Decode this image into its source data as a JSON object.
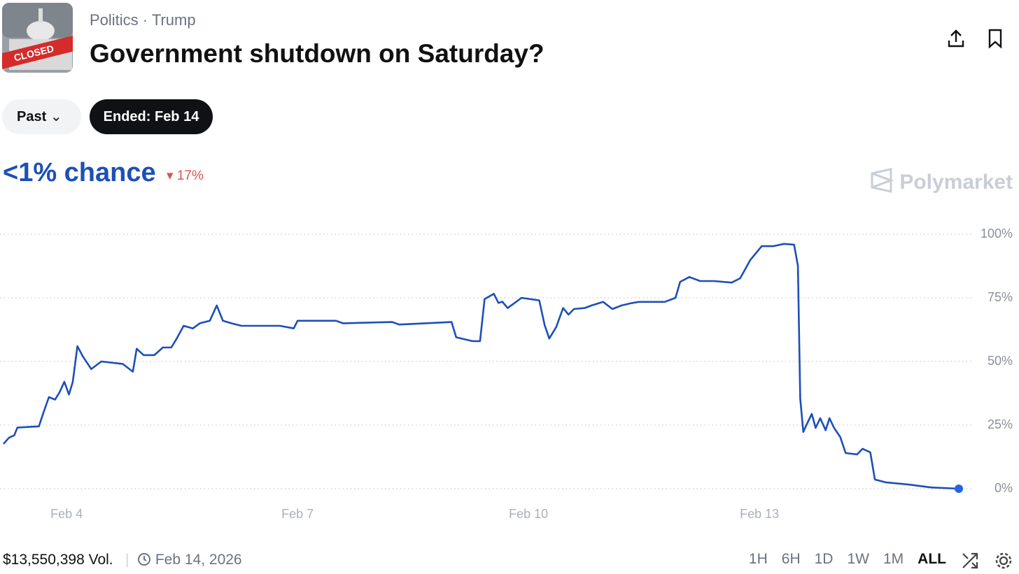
{
  "header": {
    "category": "Politics",
    "tag": "Trump",
    "title": "Government shutdown on Saturday?",
    "thumbnail_text": "CLOSED"
  },
  "filters": {
    "period": "Past",
    "status": "Ended: Feb 14"
  },
  "summary": {
    "chance": "<1% chance",
    "change": "17%",
    "brand": "Polymarket"
  },
  "chart_data": {
    "type": "line",
    "color": "#1d4fb8",
    "x": [
      3.18,
      3.25,
      3.32,
      3.36,
      3.64,
      3.7,
      3.77,
      3.85,
      3.91,
      3.97,
      4.03,
      4.08,
      4.14,
      4.21,
      4.32,
      4.45,
      4.73,
      4.86,
      4.91,
      5.0,
      5.14,
      5.25,
      5.36,
      5.43,
      5.52,
      5.64,
      5.73,
      5.86,
      5.95,
      6.03,
      6.14,
      6.27,
      6.77,
      6.95,
      7.0,
      7.5,
      7.59,
      8.23,
      8.32,
      9.0,
      9.06,
      9.27,
      9.37,
      9.43,
      9.55,
      9.61,
      9.66,
      9.73,
      9.82,
      9.91,
      10.14,
      10.21,
      10.27,
      10.36,
      10.45,
      10.52,
      10.59,
      10.73,
      10.82,
      10.97,
      11.09,
      11.21,
      11.32,
      11.43,
      11.77,
      11.91,
      11.97,
      12.09,
      12.23,
      12.41,
      12.64,
      12.75,
      12.88,
      13.03,
      13.18,
      13.32,
      13.45,
      13.5,
      13.53,
      13.57,
      13.61,
      13.68,
      13.73,
      13.79,
      13.86,
      13.91,
      13.97,
      14.05,
      14.12,
      14.27,
      14.34,
      14.44,
      14.5,
      14.64,
      14.95,
      15.23,
      15.59
    ],
    "values": [
      17.6,
      20,
      21,
      24,
      24.5,
      30,
      36,
      35,
      38,
      42,
      37,
      42,
      56,
      52,
      47,
      50,
      49,
      46,
      55,
      52.5,
      52.5,
      55.5,
      55.5,
      59,
      64,
      63,
      65,
      66,
      72,
      66,
      65,
      64,
      64,
      63,
      66,
      66,
      65,
      65.5,
      64.5,
      65.5,
      59.5,
      58,
      58,
      74.5,
      76.6,
      73,
      73.5,
      71,
      73,
      75,
      74,
      64.3,
      59,
      63.5,
      71,
      68.4,
      70.6,
      71,
      72,
      73.4,
      70.6,
      72,
      72.8,
      73.4,
      73.4,
      75,
      81.3,
      83.2,
      81.6,
      81.6,
      81,
      82.7,
      89.8,
      95.3,
      95.3,
      96.2,
      95.9,
      87.6,
      35.4,
      22.3,
      25,
      29.4,
      23.9,
      27.7,
      23,
      27.7,
      23.9,
      20.3,
      14,
      13.5,
      15.7,
      14.3,
      3.6,
      2.5,
      1.6,
      0.5,
      0
    ],
    "xlim": [
      3.18,
      15.59
    ],
    "xticks": [
      {
        "value": 4,
        "label": "Feb 4"
      },
      {
        "value": 7,
        "label": "Feb 7"
      },
      {
        "value": 10,
        "label": "Feb 10"
      },
      {
        "value": 13,
        "label": "Feb 13"
      }
    ],
    "ylim": [
      0,
      100
    ],
    "yticks": [
      {
        "value": 0,
        "label": "0%"
      },
      {
        "value": 25,
        "label": "25%"
      },
      {
        "value": 50,
        "label": "50%"
      },
      {
        "value": 75,
        "label": "75%"
      },
      {
        "value": 100,
        "label": "100%"
      }
    ],
    "grid": true
  },
  "footer": {
    "volume": "$13,550,398 Vol.",
    "date": "Feb 14, 2026",
    "ranges": [
      "1H",
      "6H",
      "1D",
      "1W",
      "1M",
      "ALL"
    ],
    "active_range": 5
  }
}
